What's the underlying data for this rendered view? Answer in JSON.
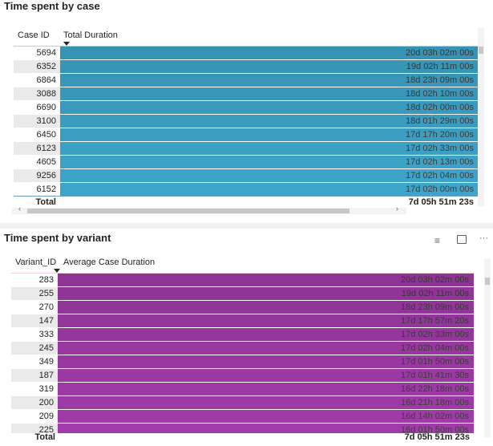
{
  "case_table": {
    "title": "Time spent by case",
    "col_id": "Case ID",
    "col_value": "Total Duration",
    "bar_color": "#3a9cbf",
    "rows": [
      {
        "id": "5694",
        "value": "20d 03h 02m 00s"
      },
      {
        "id": "6352",
        "value": "19d 02h 11m 00s"
      },
      {
        "id": "6864",
        "value": "18d 23h 09m 00s"
      },
      {
        "id": "3088",
        "value": "18d 02h 10m 00s"
      },
      {
        "id": "6690",
        "value": "18d 02h 00m 00s"
      },
      {
        "id": "3100",
        "value": "18d 01h 29m 00s"
      },
      {
        "id": "6450",
        "value": "17d 17h 20m 00s"
      },
      {
        "id": "6123",
        "value": "17d 02h 33m 00s"
      },
      {
        "id": "4605",
        "value": "17d 02h 13m 00s"
      },
      {
        "id": "9256",
        "value": "17d 02h 04m 00s"
      },
      {
        "id": "6152",
        "value": "17d 02h 00m 00s"
      }
    ],
    "total_label": "Total",
    "total_value": "7d 05h 51m 23s"
  },
  "variant_table": {
    "title": "Time spent by variant",
    "col_id": "Variant_ID",
    "col_value": "Average Case Duration",
    "bar_color": "#97379f",
    "rows": [
      {
        "id": "283",
        "value": "20d 03h 02m 00s"
      },
      {
        "id": "255",
        "value": "19d 02h 11m 00s"
      },
      {
        "id": "270",
        "value": "18d 23h 09m 00s"
      },
      {
        "id": "147",
        "value": "17d 17h 57m 20s"
      },
      {
        "id": "333",
        "value": "17d 02h 33m 00s"
      },
      {
        "id": "245",
        "value": "17d 02h 04m 00s"
      },
      {
        "id": "349",
        "value": "17d 01h 50m 00s"
      },
      {
        "id": "187",
        "value": "17d 01h 41m 30s"
      },
      {
        "id": "319",
        "value": "16d 22h 18m 00s"
      },
      {
        "id": "200",
        "value": "16d 21h 18m 00s"
      },
      {
        "id": "209",
        "value": "16d 14h 02m 00s"
      },
      {
        "id": "225",
        "value": "16d 01h 50m 00s"
      }
    ],
    "total_label": "Total",
    "total_value": "7d 05h 51m 23s",
    "icons": [
      "filter-icon",
      "focus-mode-icon",
      "more-options-icon"
    ]
  }
}
